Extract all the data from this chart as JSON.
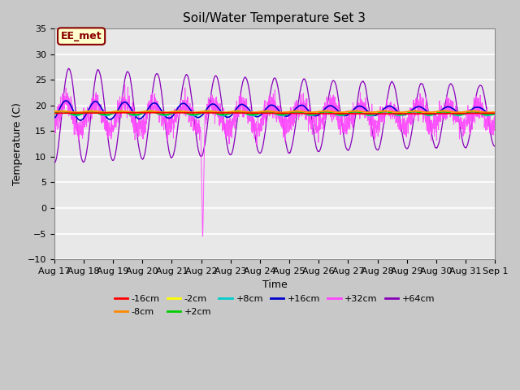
{
  "title": "Soil/Water Temperature Set 3",
  "xlabel": "Time",
  "ylabel": "Temperature (C)",
  "ylim": [
    -10,
    35
  ],
  "xlim": [
    0,
    15
  ],
  "fig_bg_color": "#c8c8c8",
  "plot_bg_color": "#e8e8e8",
  "annotation_text": "EE_met",
  "annotation_bg": "#ffffcc",
  "annotation_border": "#8B0000",
  "x_tick_labels": [
    "Aug 17",
    "Aug 18",
    "Aug 19",
    "Aug 20",
    "Aug 21",
    "Aug 22",
    "Aug 23",
    "Aug 24",
    "Aug 25",
    "Aug 26",
    "Aug 27",
    "Aug 28",
    "Aug 29",
    "Aug 30",
    "Aug 31",
    "Sep 1"
  ],
  "legend_entries": [
    {
      "label": "-16cm",
      "color": "#ff0000"
    },
    {
      "label": "-8cm",
      "color": "#ff8800"
    },
    {
      "label": "-2cm",
      "color": "#ffff00"
    },
    {
      "label": "+2cm",
      "color": "#00cc00"
    },
    {
      "label": "+8cm",
      "color": "#00cccc"
    },
    {
      "label": "+16cm",
      "color": "#0000cc"
    },
    {
      "label": "+32cm",
      "color": "#ff44ff"
    },
    {
      "label": "+64cm",
      "color": "#8800bb"
    }
  ],
  "seed": 42
}
